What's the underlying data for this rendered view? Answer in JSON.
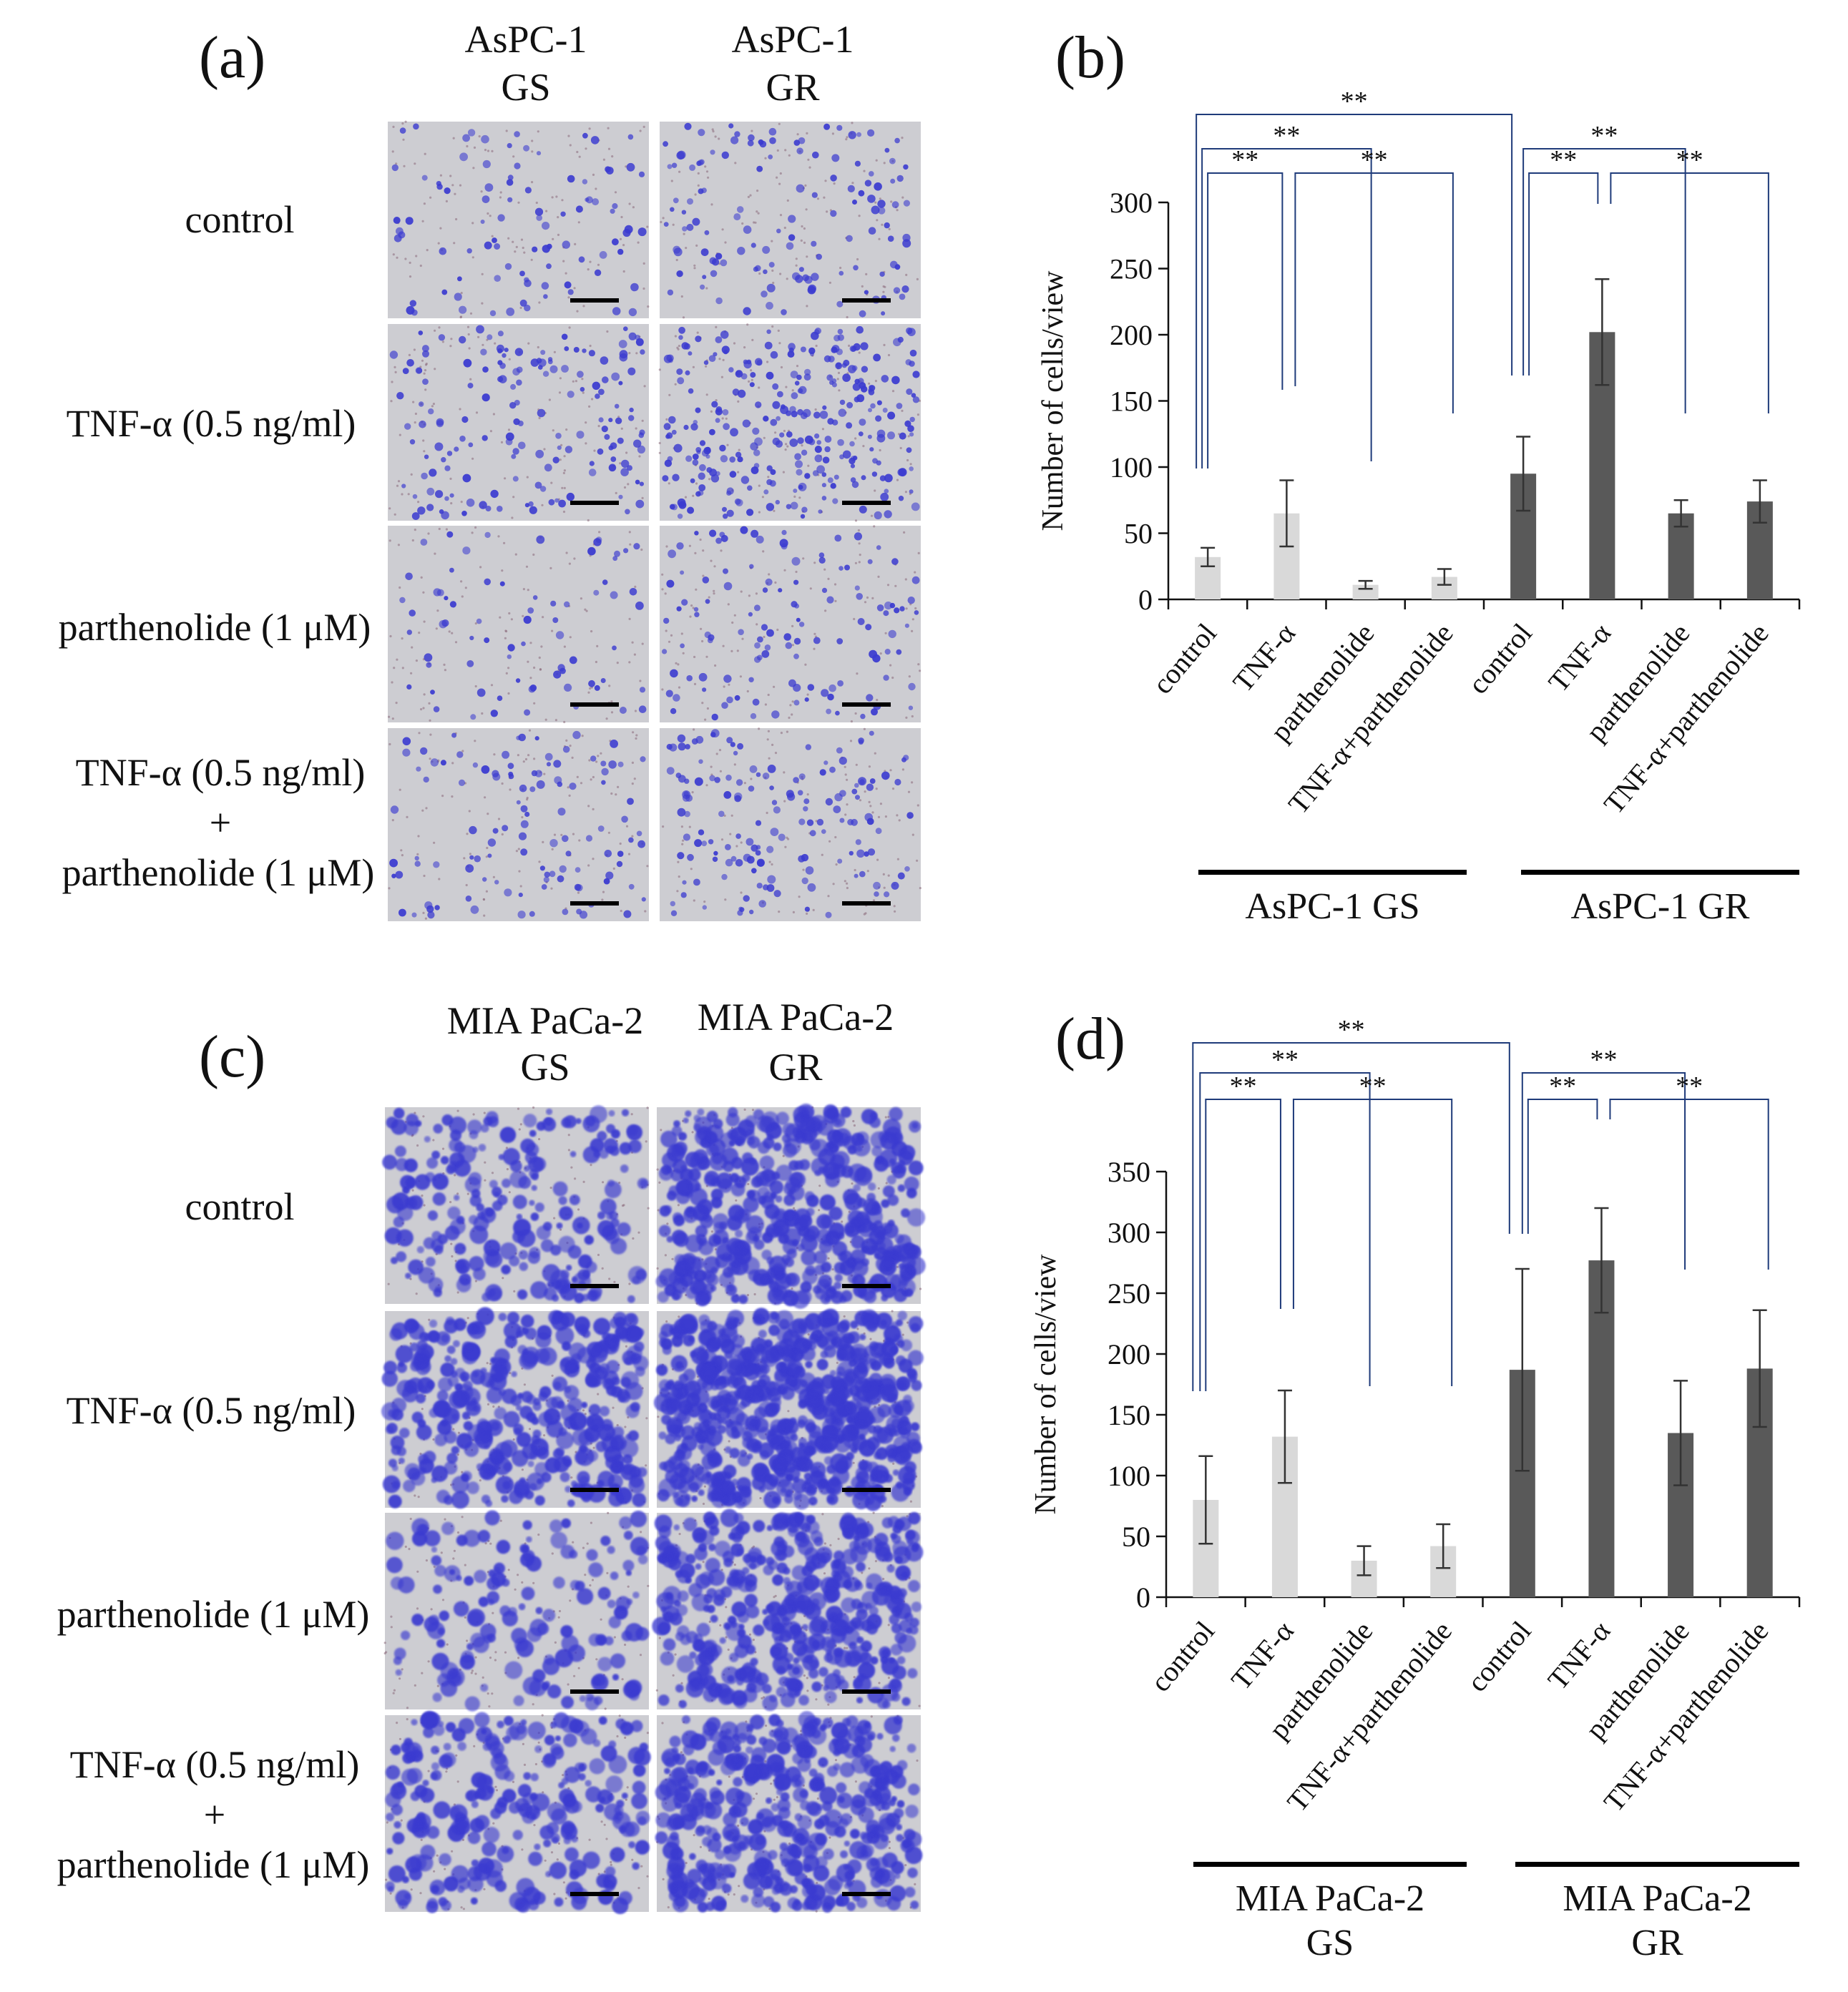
{
  "panel_labels": {
    "a": "(a)",
    "b": "(b)",
    "c": "(c)",
    "d": "(d)"
  },
  "panel_a": {
    "columns": [
      {
        "line1": "AsPC-1",
        "line2": "GS"
      },
      {
        "line1": "AsPC-1",
        "line2": "GR"
      }
    ],
    "rows": [
      {
        "lines": [
          "control"
        ]
      },
      {
        "lines": [
          "TNF-α (0.5 ng/ml)"
        ]
      },
      {
        "lines": [
          "parthenolide (1 μM)"
        ]
      },
      {
        "lines": [
          "TNF-α (0.5 ng/ml)",
          "+",
          "parthenolide (1 μM)"
        ]
      }
    ]
  },
  "panel_c": {
    "columns": [
      {
        "line1": "MIA PaCa-2",
        "line2": "GS"
      },
      {
        "line1": "MIA PaCa-2",
        "line2": "GR"
      }
    ],
    "rows": [
      {
        "lines": [
          "control"
        ]
      },
      {
        "lines": [
          "TNF-α (0.5 ng/ml)"
        ]
      },
      {
        "lines": [
          "parthenolide (1 μM)"
        ]
      },
      {
        "lines": [
          "TNF-α (0.5 ng/ml)",
          "+",
          "parthenolide (1 μM)"
        ]
      }
    ]
  },
  "significance_mark": "**",
  "colors": {
    "gs_bar": "#d9d9d9",
    "gr_bar": "#595959",
    "bracket": "#1f3b7a",
    "stain": "#3b3bd0",
    "membrane": "#cdcdd2"
  },
  "chart_data": [
    {
      "type": "bar",
      "panel": "(b)",
      "ylabel": "Number of cells/view",
      "ylim": [
        0,
        300
      ],
      "yticks": [
        0,
        50,
        100,
        150,
        200,
        250,
        300
      ],
      "categories": [
        "control",
        "TNF-α",
        "parthenolide",
        "TNF-α+parthenolide",
        "control",
        "TNF-α",
        "parthenolide",
        "TNF-α+parthenolide"
      ],
      "groups": [
        {
          "label": "AsPC-1 GS",
          "lines": [
            "AsPC-1 GS"
          ]
        },
        {
          "label": "AsPC-1 GR",
          "lines": [
            "AsPC-1 GR"
          ]
        }
      ],
      "values": [
        32,
        65,
        11,
        17,
        95,
        202,
        65,
        74
      ],
      "errors": [
        7,
        25,
        3,
        6,
        28,
        40,
        10,
        16
      ],
      "grid": false
    },
    {
      "type": "bar",
      "panel": "(d)",
      "ylabel": "Number of cells/view",
      "ylim": [
        0,
        350
      ],
      "yticks": [
        0,
        50,
        100,
        150,
        200,
        250,
        300,
        350
      ],
      "categories": [
        "control",
        "TNF-α",
        "parthenolide",
        "TNF-α+parthenolide",
        "control",
        "TNF-α",
        "parthenolide",
        "TNF-α+parthenolide"
      ],
      "groups": [
        {
          "label": "MIA PaCa-2 GS",
          "lines": [
            "MIA PaCa-2",
            "GS"
          ]
        },
        {
          "label": "MIA PaCa-2 GR",
          "lines": [
            "MIA PaCa-2",
            "GR"
          ]
        }
      ],
      "values": [
        80,
        132,
        30,
        42,
        187,
        277,
        135,
        188
      ],
      "errors": [
        36,
        38,
        12,
        18,
        83,
        43,
        43,
        48
      ],
      "grid": false
    }
  ]
}
